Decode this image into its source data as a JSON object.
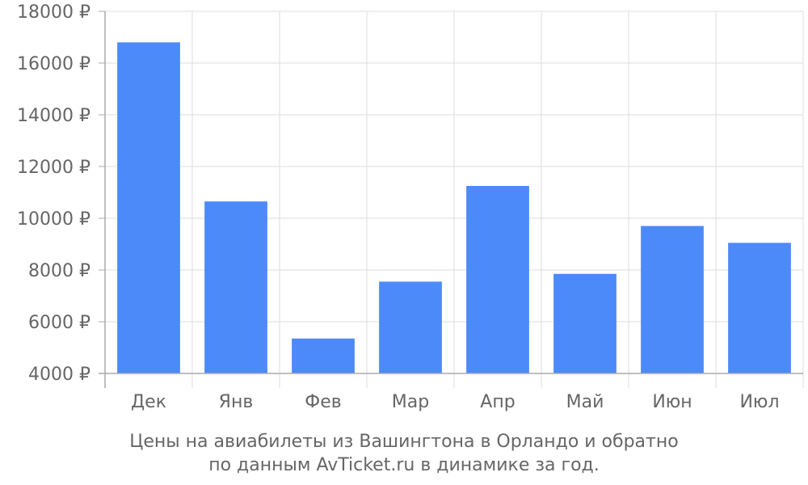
{
  "caption": {
    "line1": "Цены на авиабилеты из Вашингтона в Орландо и обратно",
    "line2": "по данным AvTicket.ru в динамике за год."
  },
  "colors": {
    "bar": "#4d8af9",
    "grid": "#dddddd",
    "axis": "#aaaaaa",
    "text": "#666666"
  },
  "chart_data": {
    "type": "bar",
    "categories": [
      "Дек",
      "Янв",
      "Фев",
      "Мар",
      "Апр",
      "Май",
      "Июн",
      "Июл"
    ],
    "values": [
      16800,
      10650,
      5350,
      7550,
      11250,
      7850,
      9700,
      9050
    ],
    "ylim": [
      4000,
      18000
    ],
    "yticks": [
      4000,
      6000,
      8000,
      10000,
      12000,
      14000,
      16000,
      18000
    ],
    "ytick_suffix": " ₽",
    "grid": true,
    "legend": "none"
  }
}
